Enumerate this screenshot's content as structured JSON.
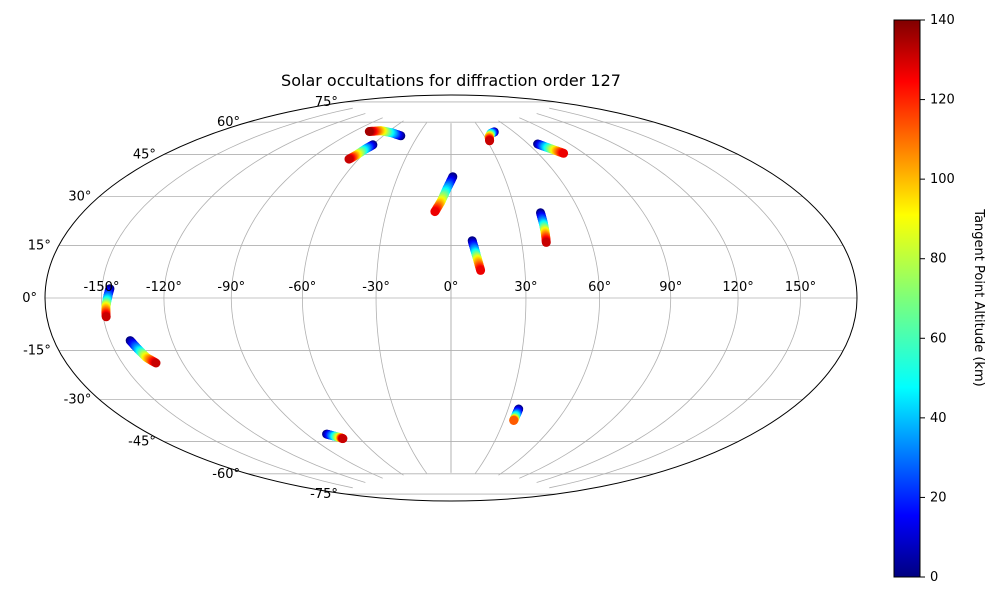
{
  "chart_data": {
    "type": "scatter",
    "projection": "hammer",
    "title": "Solar occultations for diffraction order 127",
    "grid": true,
    "lon_ticks": [
      -150,
      -120,
      -90,
      -60,
      -30,
      0,
      30,
      60,
      90,
      120,
      150
    ],
    "lon_tick_labels": [
      "-150°",
      "-120°",
      "-90°",
      "-60°",
      "-30°",
      "0°",
      "30°",
      "60°",
      "90°",
      "120°",
      "150°"
    ],
    "lat_ticks": [
      -75,
      -60,
      -45,
      -30,
      -15,
      0,
      15,
      30,
      45,
      60,
      75
    ],
    "lat_tick_labels": [
      "-75°",
      "-60°",
      "-45°",
      "-30°",
      "-15°",
      "0°",
      "15°",
      "30°",
      "45°",
      "60°",
      "75°"
    ],
    "colorbar": {
      "label": "Tangent Point Altitude (km)",
      "range": [
        0,
        140
      ],
      "ticks": [
        0,
        20,
        40,
        60,
        80,
        100,
        120,
        140
      ],
      "tick_labels": [
        "0",
        "20",
        "40",
        "60",
        "80",
        "100",
        "120",
        "140"
      ],
      "colormap": "jet"
    },
    "tracks": [
      {
        "lon": [
          -45,
          -55,
          -68,
          -77
        ],
        "lat": [
          68,
          69,
          69.5,
          68.5
        ],
        "alt": [
          0,
          40,
          90,
          135
        ]
      },
      {
        "lon": [
          -60,
          -62,
          -64,
          -66
        ],
        "lat": [
          63,
          61,
          58,
          56
        ],
        "alt": [
          0,
          40,
          90,
          130
        ]
      },
      {
        "lon": [
          1,
          -2,
          -5,
          -7.5
        ],
        "lat": [
          50,
          45,
          39,
          35
        ],
        "alt": [
          0,
          40,
          90,
          125
        ]
      },
      {
        "lon": [
          9,
          10,
          11,
          12
        ],
        "lat": [
          23,
          19,
          15,
          11
        ],
        "alt": [
          0,
          40,
          90,
          125
        ]
      },
      {
        "lon": [
          41.5,
          41.3,
          41,
          40.5
        ],
        "lat": [
          34,
          30,
          26,
          22
        ],
        "alt": [
          0,
          40,
          90,
          130
        ]
      },
      {
        "lon": [
          42,
          38,
          34,
          32
        ],
        "lat": [
          70,
          69.5,
          68,
          66
        ],
        "alt": [
          0,
          40,
          90,
          130
        ]
      },
      {
        "lon": [
          67,
          70,
          74,
          77
        ],
        "lat": [
          63,
          61.5,
          59.5,
          58
        ],
        "alt": [
          0,
          40,
          90,
          125
        ]
      },
      {
        "lon": [
          -146,
          -147,
          -148,
          -148.5
        ],
        "lat": [
          3,
          0,
          -3,
          -6
        ],
        "alt": [
          0,
          40,
          90,
          130
        ]
      },
      {
        "lon": [
          -140,
          -138,
          -136,
          -133
        ],
        "lat": [
          -14,
          -17,
          -20,
          -22
        ],
        "alt": [
          0,
          40,
          90,
          130
        ]
      },
      {
        "lon": [
          -78,
          -75,
          -72,
          -71
        ],
        "lat": [
          -54,
          -55,
          -56,
          -56.5
        ],
        "alt": [
          0,
          40,
          90,
          130
        ]
      },
      {
        "lon": [
          35.5,
          35.5,
          35.5,
          35.5
        ],
        "lat": [
          -45,
          -47,
          -49,
          -50
        ],
        "alt": [
          0,
          30,
          70,
          110
        ]
      }
    ]
  }
}
